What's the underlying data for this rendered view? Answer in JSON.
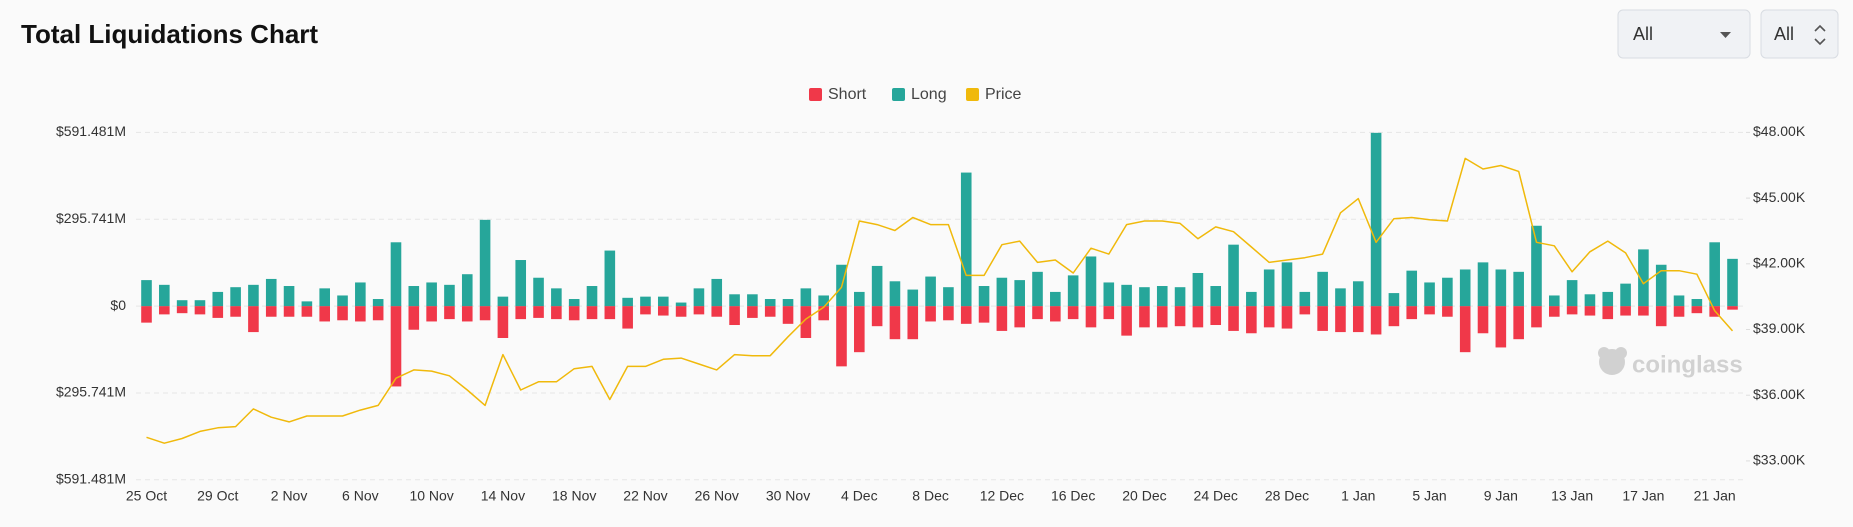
{
  "page_title": "Total Liquidations Chart",
  "controls": [
    "All",
    "All"
  ],
  "watermark": "coinglass",
  "chart_data": {
    "type": "bar",
    "stacked": true,
    "grid": true,
    "legend": "top",
    "categories": [
      "25 Oct",
      null,
      null,
      null,
      "29 Oct",
      null,
      null,
      null,
      "2 Nov",
      null,
      null,
      null,
      "6 Nov",
      null,
      null,
      null,
      "10 Nov",
      null,
      null,
      null,
      "14 Nov",
      null,
      null,
      null,
      "18 Nov",
      null,
      null,
      null,
      "22 Nov",
      null,
      null,
      null,
      "26 Nov",
      null,
      null,
      null,
      "30 Nov",
      null,
      null,
      null,
      "4 Dec",
      null,
      null,
      null,
      "8 Dec",
      null,
      null,
      null,
      "12 Dec",
      null,
      null,
      null,
      "16 Dec",
      null,
      null,
      null,
      "20 Dec",
      null,
      null,
      null,
      "24 Dec",
      null,
      null,
      null,
      "28 Dec",
      null,
      null,
      null,
      "1 Jan",
      null,
      null,
      null,
      "5 Jan",
      null,
      null,
      null,
      "9 Jan",
      null,
      null,
      null,
      "13 Jan",
      null,
      null,
      null,
      "17 Jan",
      null,
      null,
      null,
      "21 Jan",
      null
    ],
    "ylim": [
      -591.481,
      591.481
    ],
    "yticks": [
      {
        "value": -591.481,
        "label": "$591.481M"
      },
      {
        "value": -295.741,
        "label": "$295.741M"
      },
      {
        "value": 0,
        "label": "$0"
      },
      {
        "value": 295.741,
        "label": "$295.741M"
      },
      {
        "value": 591.481,
        "label": "$591.481M"
      }
    ],
    "y2lim": [
      32137,
      48000
    ],
    "y2ticks": [
      {
        "value": 33000,
        "label": "$33.00K"
      },
      {
        "value": 36000,
        "label": "$36.00K"
      },
      {
        "value": 39000,
        "label": "$39.00K"
      },
      {
        "value": 42000,
        "label": "$42.00K"
      },
      {
        "value": 45000,
        "label": "$45.00K"
      },
      {
        "value": 48000,
        "label": "$48.00K"
      }
    ],
    "series": [
      {
        "name": "Short",
        "color": "#f03849",
        "values": [
          -56.3,
          -28.2,
          -24.1,
          -28.2,
          -40.2,
          -36.2,
          -88.5,
          -36.2,
          -36.2,
          -36.2,
          -52.3,
          -48.3,
          -52.3,
          -48.3,
          -273.6,
          -80.5,
          -52.3,
          -44.3,
          -52.3,
          -48.3,
          -108.6,
          -44.3,
          -40.2,
          -44.3,
          -48.3,
          -44.3,
          -44.3,
          -76.5,
          -28.2,
          -32.2,
          -36.2,
          -28.2,
          -36.2,
          -64.4,
          -40.2,
          -36.2,
          -60.4,
          -108.6,
          -48.3,
          -205.2,
          -156.9,
          -68.4,
          -112.7,
          -112.7,
          -52.3,
          -48.3,
          -60.4,
          -56.3,
          -84.5,
          -72.4,
          -44.3,
          -52.3,
          -44.3,
          -72.4,
          -44.3,
          -100.6,
          -72.4,
          -72.4,
          -68.4,
          -72.4,
          -64.4,
          -84.5,
          -92.5,
          -72.4,
          -76.5,
          -28.2,
          -84.5,
          -88.5,
          -88.5,
          -96.6,
          -68.4,
          -44.3,
          -28.2,
          -36.2,
          -156.9,
          -92.5,
          -140.8,
          -112.7,
          -72.4,
          -36.2,
          -28.2,
          -32.2,
          -44.3,
          -32.2,
          -32.2,
          -68.4,
          -36.2,
          -24.1,
          -36.2,
          -12.1
        ]
      },
      {
        "name": "Long",
        "color": "#26a69a",
        "values": [
          88.5,
          72.4,
          20.1,
          20.1,
          48.3,
          64.4,
          72.4,
          92.5,
          68.4,
          16.1,
          60.4,
          36.2,
          80.5,
          24.1,
          217.3,
          68.4,
          80.5,
          72.4,
          108.6,
          293.7,
          32.2,
          156.9,
          96.6,
          60.4,
          24.1,
          68.4,
          189.1,
          28.2,
          32.2,
          32.2,
          12.1,
          60.4,
          92.5,
          40.2,
          40.2,
          24.1,
          24.1,
          60.4,
          36.2,
          140.8,
          48.3,
          136.8,
          84.5,
          56.3,
          100.6,
          64.4,
          454.7,
          68.4,
          96.6,
          88.5,
          116.7,
          48.3,
          104.6,
          169.0,
          80.5,
          72.4,
          64.4,
          68.4,
          64.4,
          112.7,
          68.4,
          209.2,
          48.3,
          124.7,
          148.9,
          48.3,
          116.7,
          60.4,
          84.5,
          590,
          44.3,
          120.7,
          80.5,
          96.6,
          124.7,
          148.9,
          124.7,
          116.7,
          273.6,
          36.2,
          88.5,
          40.2,
          48.3,
          76.5,
          193.1,
          140.8,
          36.2,
          24.1,
          217.3,
          160.9
        ]
      },
      {
        "name": "Price",
        "color": "#f0b90b",
        "type": "line",
        "axis": "y2",
        "values": [
          34078,
          33809,
          34024,
          34348,
          34510,
          34564,
          35373,
          34996,
          34780,
          35050,
          35050,
          35050,
          35319,
          35535,
          36776,
          37154,
          37100,
          36884,
          36237,
          35535,
          37856,
          36237,
          36614,
          36614,
          37208,
          37316,
          35805,
          37316,
          37316,
          37640,
          37694,
          37424,
          37154,
          37856,
          37802,
          37802,
          38665,
          39474,
          40014,
          40931,
          43953,
          43791,
          43521,
          44115,
          43791,
          43791,
          41471,
          41471,
          42874,
          43036,
          42064,
          42172,
          41579,
          42712,
          42442,
          43791,
          43953,
          43953,
          43845,
          43144,
          43683,
          43467,
          42766,
          42064,
          42172,
          42280,
          42442,
          44331,
          44978,
          42982,
          44061,
          44115,
          44007,
          43953,
          46813,
          46327,
          46489,
          46219,
          42982,
          42820,
          41633,
          42550,
          43036,
          42496,
          41093,
          41687,
          41687,
          41525,
          39852,
          38935
        ]
      }
    ]
  }
}
